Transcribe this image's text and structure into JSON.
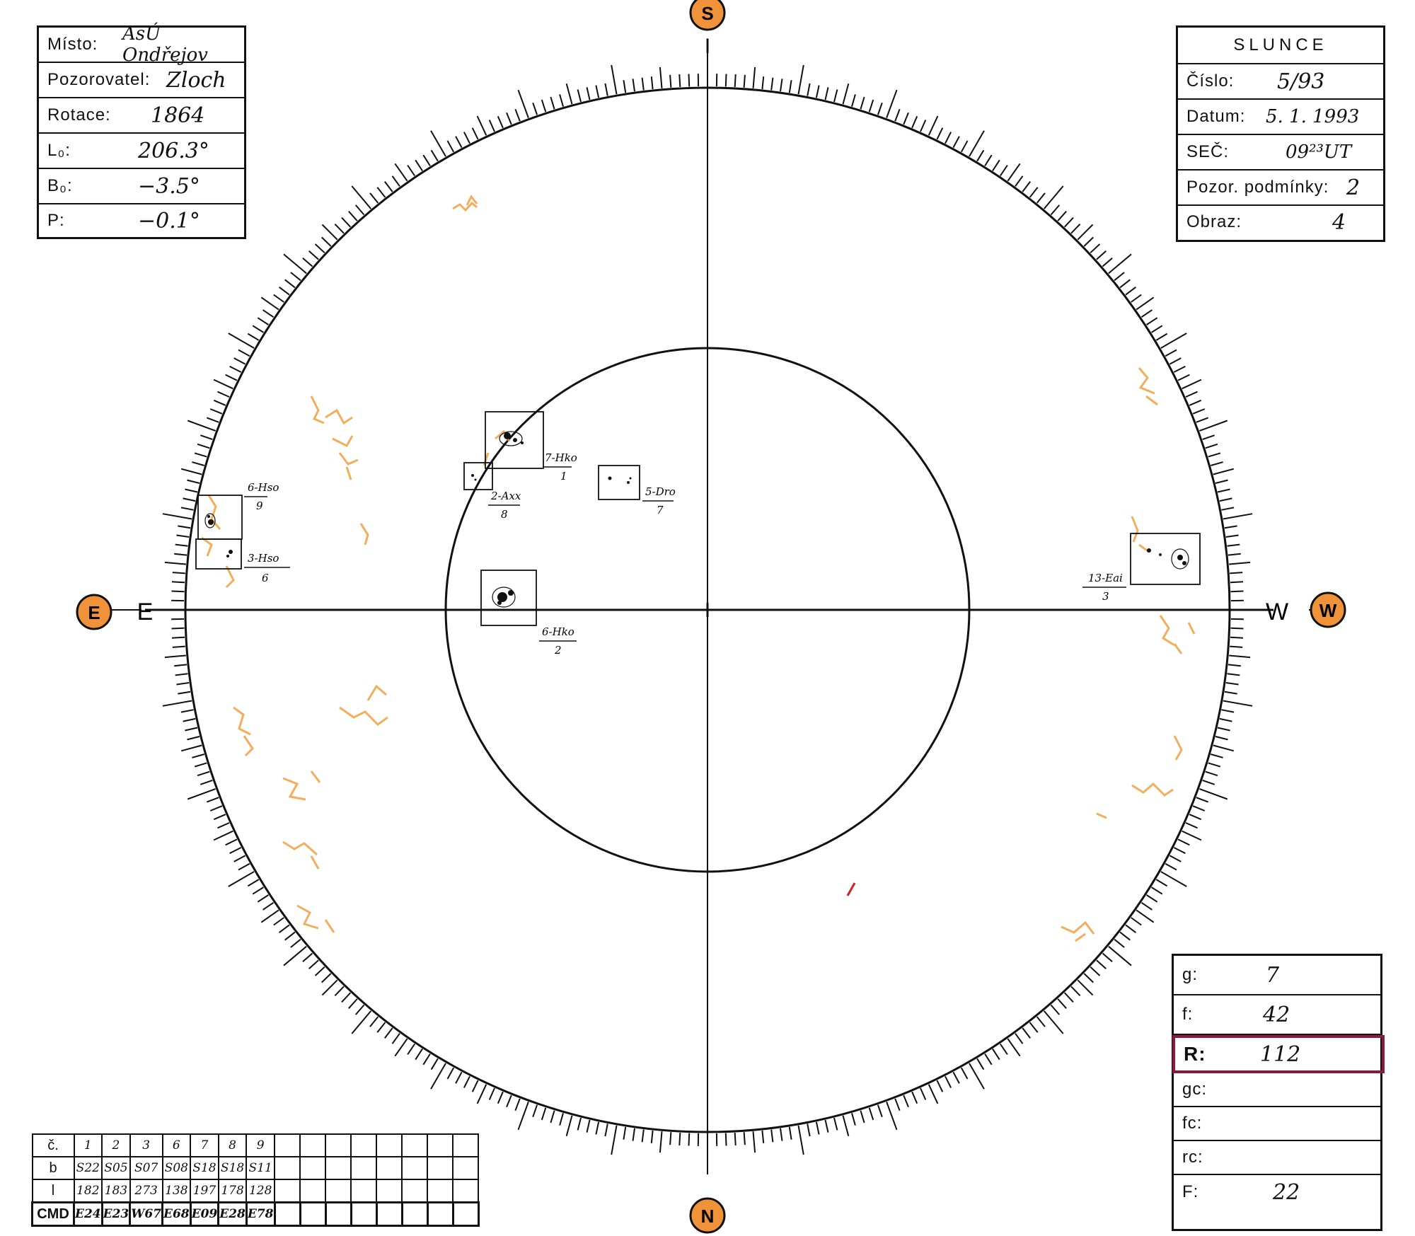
{
  "info_left": {
    "rows": [
      {
        "label": "Místo:",
        "value": "AsÚ Ondřejov"
      },
      {
        "label": "Pozorovatel:",
        "value": "Zloch"
      },
      {
        "label": "Rotace:",
        "value": "1864"
      },
      {
        "label": "L₀:",
        "value": "206.3°"
      },
      {
        "label": "B₀:",
        "value": "−3.5°"
      },
      {
        "label": "P:",
        "value": "−0.1°"
      }
    ]
  },
  "info_right": {
    "title": "SLUNCE",
    "rows": [
      {
        "label": "Číslo:",
        "value": "5/93"
      },
      {
        "label": "Datum:",
        "value": "5. 1. 1993"
      },
      {
        "label": "SEČ:",
        "value": "09²³UT"
      },
      {
        "label": "Pozor. podmínky:",
        "value": "2"
      },
      {
        "label": "Obraz:",
        "value": "4"
      }
    ]
  },
  "stats": {
    "rows": [
      {
        "label": "g:",
        "value": "7"
      },
      {
        "label": "f:",
        "value": "42"
      },
      {
        "label": "R:",
        "value": "112"
      },
      {
        "label": "gc:",
        "value": ""
      },
      {
        "label": "fc:",
        "value": ""
      },
      {
        "label": "rc:",
        "value": ""
      },
      {
        "label": "F:",
        "value": "22"
      }
    ],
    "highlight_color": "#8b1a3a"
  },
  "directions": {
    "south": "S",
    "north": "N",
    "east": "E",
    "west": "W",
    "east_axis": "E",
    "west_axis": "W",
    "marker_fill": "#f0923a"
  },
  "groups": [
    {
      "name": "6-Hso",
      "number": "9"
    },
    {
      "name": "3-Hso",
      "number": "6"
    },
    {
      "name": "7-Hko",
      "number": "1"
    },
    {
      "name": "2-Axx",
      "number": "8"
    },
    {
      "name": "5-Dro",
      "number": "7"
    },
    {
      "name": "6-Hko",
      "number": "2"
    },
    {
      "name": "13-Eai",
      "number": "3"
    }
  ],
  "table": {
    "headers": [
      "č.",
      "b",
      "l",
      "CMD"
    ],
    "columns": [
      "1",
      "2",
      "3",
      "6",
      "7",
      "8",
      "9"
    ],
    "b": [
      "S22",
      "S05",
      "S07",
      "S08",
      "S18",
      "S18",
      "S11"
    ],
    "l": [
      "182",
      "183",
      "273",
      "138",
      "197",
      "178",
      "128"
    ],
    "cmd": [
      "E24",
      "E23",
      "W67",
      "E68",
      "E09",
      "E28",
      "E78"
    ]
  },
  "colors": {
    "facula": "#f0a040",
    "ink": "#111111"
  }
}
